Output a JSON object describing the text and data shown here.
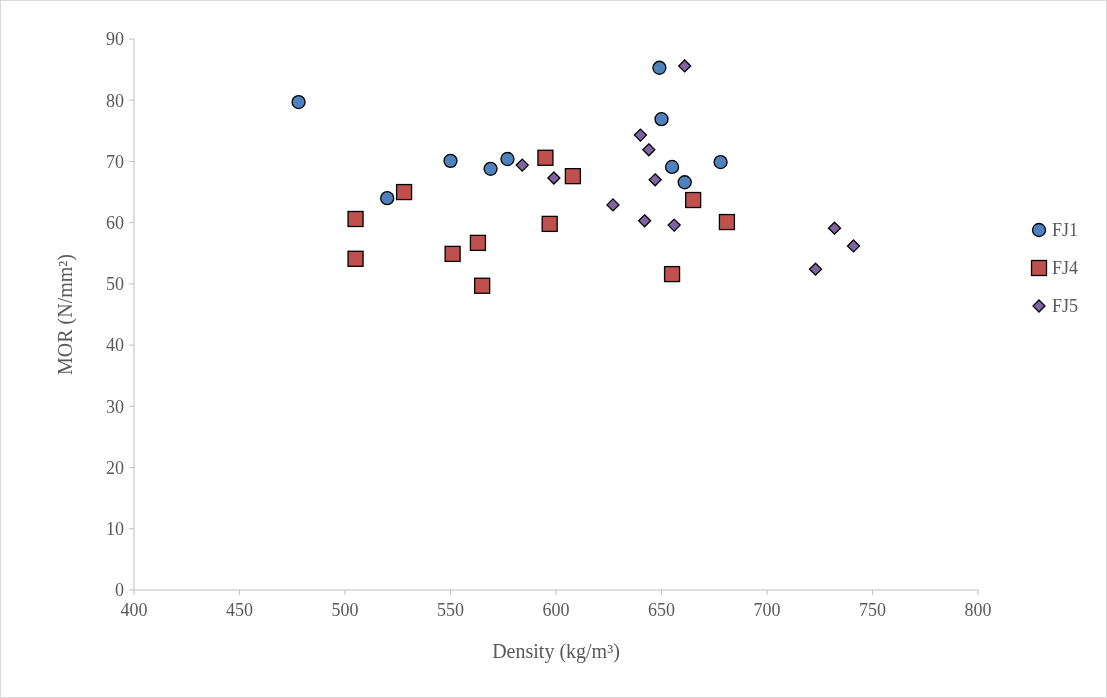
{
  "chart_data": {
    "type": "scatter",
    "xlabel": "Density (kg/m³)",
    "ylabel": "MOR (N/mm²)",
    "xlim": [
      400,
      800
    ],
    "xticks": [
      400,
      450,
      500,
      550,
      600,
      650,
      700,
      750,
      800
    ],
    "ylim": [
      0,
      90
    ],
    "yticks": [
      0,
      10,
      20,
      30,
      40,
      50,
      60,
      70,
      80,
      90
    ],
    "grid": false,
    "legend": "right",
    "series": [
      {
        "name": "FJ1",
        "color": "#4f81bd",
        "marker": "circle",
        "x": [
          478,
          520,
          550,
          569,
          577,
          649,
          650,
          655,
          661,
          678
        ],
        "values": [
          79.7,
          64.0,
          70.1,
          68.8,
          70.4,
          85.3,
          76.9,
          69.1,
          66.6,
          69.9
        ]
      },
      {
        "name": "FJ4",
        "color": "#c0504d",
        "marker": "square",
        "x": [
          505,
          505,
          528,
          551,
          563,
          565,
          595,
          597,
          608,
          655,
          665,
          681
        ],
        "values": [
          60.6,
          54.1,
          65.0,
          54.9,
          56.7,
          49.7,
          70.6,
          59.8,
          67.6,
          51.6,
          63.7,
          60.1
        ]
      },
      {
        "name": "FJ5",
        "color": "#8064a2",
        "marker": "diamond",
        "x": [
          584,
          599,
          627,
          640,
          642,
          644,
          647,
          656,
          661,
          723,
          732,
          741
        ],
        "values": [
          69.4,
          67.3,
          62.9,
          74.3,
          60.3,
          71.9,
          67.0,
          59.6,
          85.6,
          52.4,
          59.1,
          56.2
        ]
      }
    ]
  }
}
